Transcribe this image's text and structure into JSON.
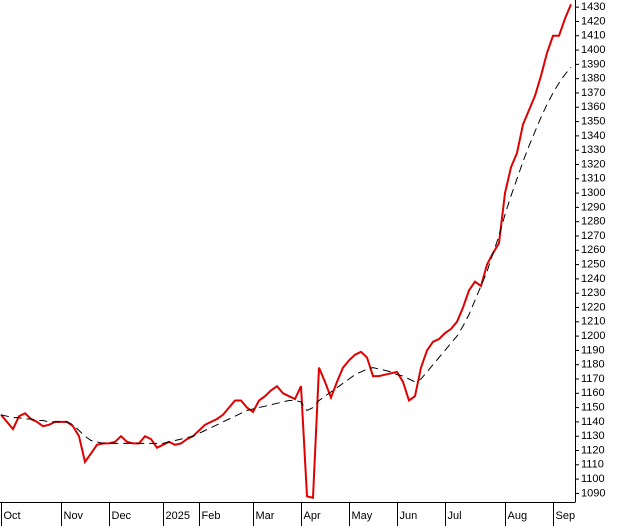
{
  "chart_data": {
    "type": "line",
    "categories": [
      "Oct",
      null,
      null,
      null,
      null,
      null,
      null,
      null,
      null,
      null,
      "Nov",
      null,
      null,
      null,
      null,
      null,
      null,
      null,
      "Dec",
      null,
      null,
      null,
      null,
      null,
      null,
      null,
      null,
      "2025",
      null,
      null,
      null,
      null,
      null,
      "Feb",
      null,
      null,
      null,
      null,
      null,
      null,
      null,
      null,
      "Mar",
      null,
      null,
      null,
      null,
      null,
      null,
      null,
      "Apr",
      null,
      null,
      null,
      null,
      null,
      null,
      null,
      "May",
      null,
      null,
      null,
      null,
      null,
      null,
      null,
      "Jun",
      null,
      null,
      null,
      null,
      null,
      null,
      null,
      "Jul",
      null,
      null,
      null,
      null,
      null,
      null,
      null,
      null,
      null,
      "Aug",
      null,
      null,
      null,
      null,
      null,
      null,
      null,
      "Sep",
      null,
      null,
      null
    ],
    "series": [
      {
        "color": "#e00000",
        "dashed": false,
        "values": [
          1145,
          1140,
          1135,
          1144,
          1146,
          1142,
          1140,
          1137,
          1138,
          1140,
          1140,
          1140,
          1137,
          1130,
          1112,
          1118,
          1124,
          1125,
          1125,
          1126,
          1130,
          1126,
          1125,
          1125,
          1130,
          1128,
          1122,
          1124,
          1126,
          1124,
          1125,
          1128,
          1130,
          1134,
          1138,
          1140,
          1142,
          1145,
          1150,
          1155,
          1155,
          1150,
          1147,
          1155,
          1158,
          1162,
          1165,
          1160,
          1158,
          1156,
          1165,
          1088,
          1087,
          1178,
          1168,
          1157,
          1168,
          1178,
          1183,
          1187,
          1189,
          1185,
          1172,
          1172,
          1173,
          1174,
          1175,
          1168,
          1155,
          1158,
          1178,
          1190,
          1196,
          1198,
          1202,
          1205,
          1210,
          1220,
          1232,
          1238,
          1235,
          1250,
          1258,
          1265,
          1300,
          1318,
          1328,
          1348,
          1358,
          1368,
          1382,
          1398,
          1410,
          1410,
          1422,
          1432
        ]
      },
      {
        "color": "#000000",
        "dashed": true,
        "values": [
          1145,
          1144,
          1143,
          1143,
          1142,
          1142,
          1141,
          1141,
          1140,
          1140,
          1140,
          1140,
          1138,
          1134,
          1130,
          1127,
          1126,
          1125,
          1125,
          1125,
          1125,
          1125,
          1125,
          1125,
          1125,
          1125,
          1125,
          1125,
          1126,
          1127,
          1128,
          1129,
          1130,
          1132,
          1134,
          1136,
          1138,
          1140,
          1142,
          1144,
          1146,
          1148,
          1149,
          1150,
          1151,
          1152,
          1153,
          1154,
          1155,
          1155,
          1154,
          1148,
          1150,
          1155,
          1158,
          1161,
          1164,
          1167,
          1170,
          1173,
          1175,
          1177,
          1178,
          1177,
          1176,
          1175,
          1173,
          1172,
          1170,
          1168,
          1170,
          1175,
          1180,
          1185,
          1190,
          1195,
          1200,
          1207,
          1215,
          1225,
          1235,
          1245,
          1258,
          1270,
          1285,
          1298,
          1310,
          1322,
          1333,
          1343,
          1353,
          1362,
          1370,
          1377,
          1383,
          1388
        ]
      }
    ],
    "ylim": [
      1084,
      1435
    ],
    "yticks": [
      1090,
      1100,
      1110,
      1120,
      1130,
      1140,
      1150,
      1160,
      1170,
      1180,
      1190,
      1200,
      1210,
      1220,
      1230,
      1240,
      1250,
      1260,
      1270,
      1280,
      1290,
      1300,
      1310,
      1320,
      1330,
      1340,
      1350,
      1360,
      1370,
      1380,
      1390,
      1400,
      1410,
      1420,
      1430
    ]
  }
}
